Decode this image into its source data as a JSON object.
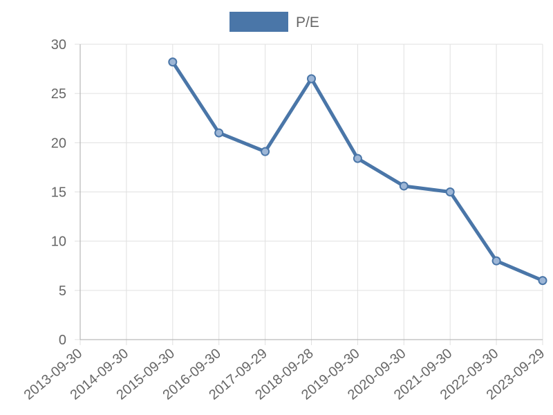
{
  "chart_data": {
    "type": "line",
    "categories": [
      "2013-09-30",
      "2014-09-30",
      "2015-09-30",
      "2016-09-30",
      "2017-09-29",
      "2018-09-28",
      "2019-09-30",
      "2020-09-30",
      "2021-09-30",
      "2022-09-30",
      "2023-09-29"
    ],
    "series": [
      {
        "name": "P/E",
        "color": "#4a76a8",
        "values": [
          null,
          null,
          28.2,
          21.0,
          19.1,
          26.5,
          18.4,
          15.6,
          15.0,
          8.0,
          6.0
        ]
      }
    ],
    "ylim": [
      0,
      30
    ],
    "yticks": [
      0,
      5,
      10,
      15,
      20,
      25,
      30
    ],
    "grid": true,
    "legend": "top"
  }
}
